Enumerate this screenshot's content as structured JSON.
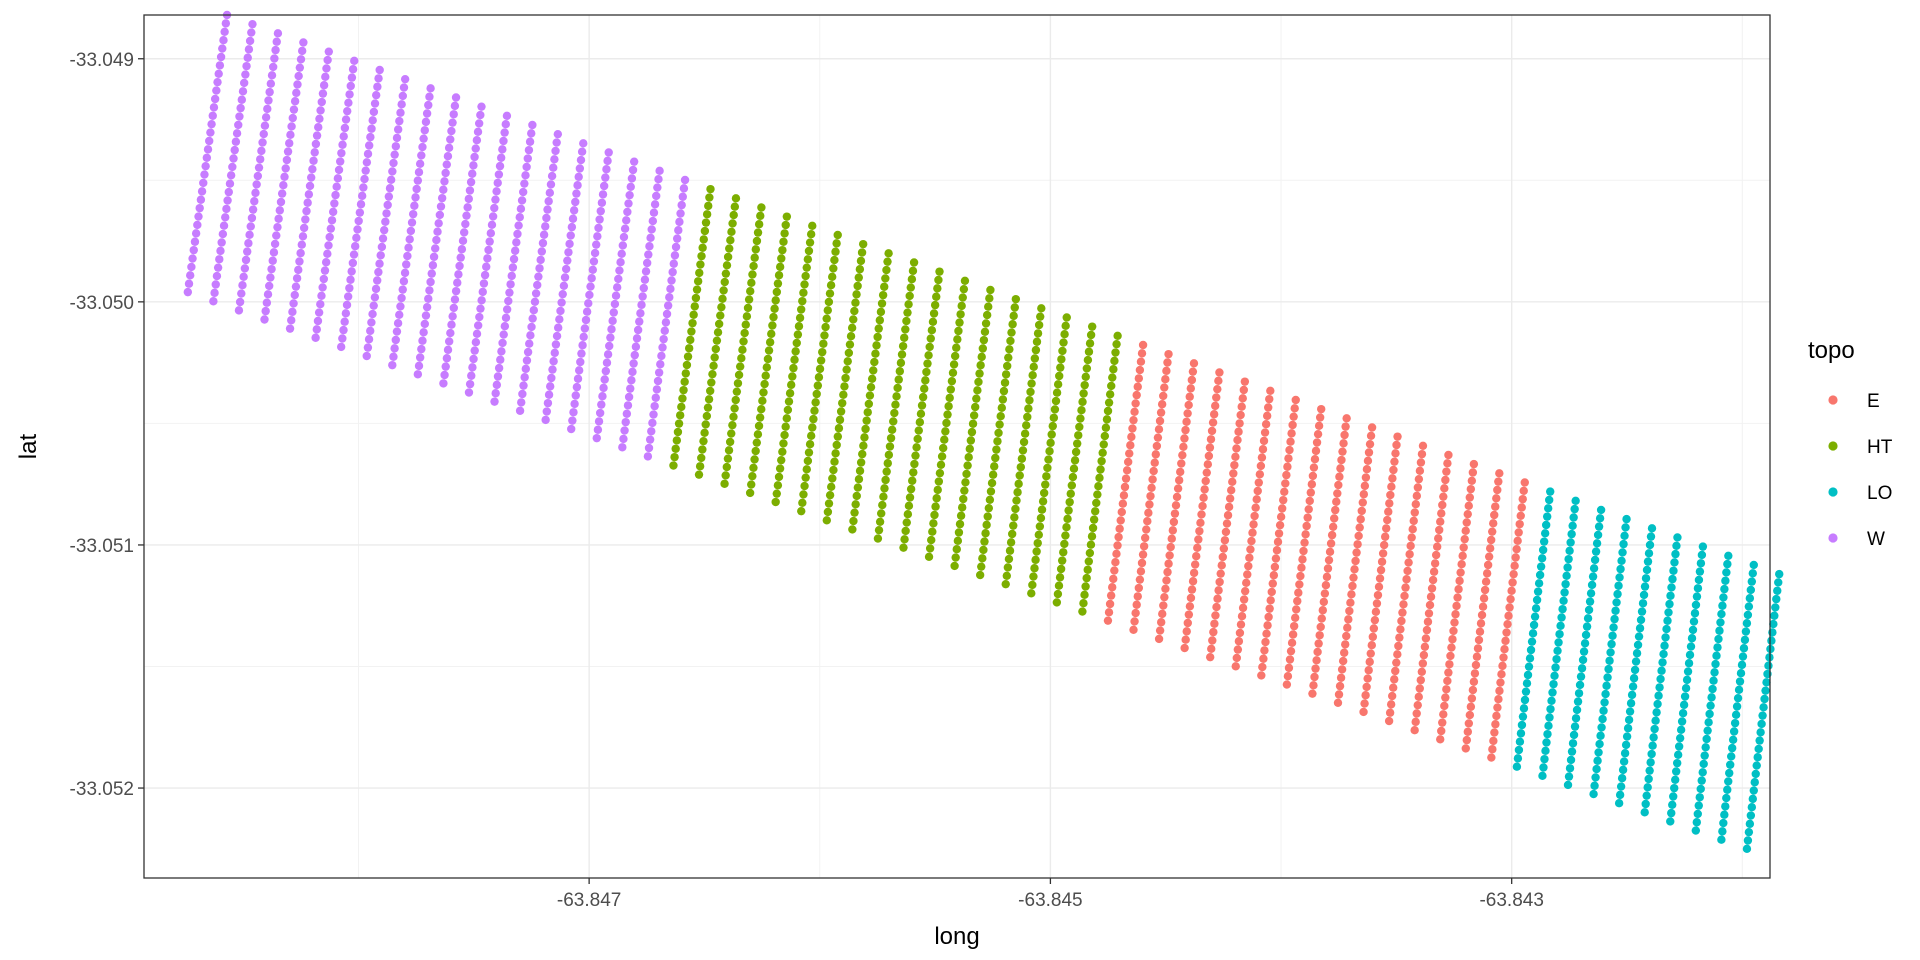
{
  "chart_data": {
    "type": "scatter",
    "title": "",
    "xlabel": "long",
    "ylabel": "lat",
    "xlim": [
      -63.84893,
      -63.84188
    ],
    "ylim": [
      -33.05237,
      -33.04882
    ],
    "x_ticks": [
      -63.847,
      -63.845,
      -63.843
    ],
    "x_tick_labels": [
      "-63.847",
      "-63.845",
      "-63.843"
    ],
    "y_ticks": [
      -33.049,
      -33.05,
      -33.051,
      -33.052
    ],
    "y_tick_labels": [
      "-33.049",
      "-33.050",
      "-33.051",
      "-33.052"
    ],
    "grid": true,
    "legend": {
      "title": "topo",
      "placement": "right"
    },
    "field_corners": {
      "top_left": [
        -63.84857,
        -33.04882
      ],
      "top_right": [
        -63.84184,
        -33.05112
      ],
      "bottom_right": [
        -63.84198,
        -33.05225
      ],
      "bottom_left": [
        -63.84874,
        -33.04996
      ]
    },
    "grid_rows": 34,
    "grid_cols": 62,
    "zones": [
      {
        "name": "W",
        "color": "#C77CFF",
        "col_start": 0,
        "col_end": 18,
        "boundary_top_long": -63.84668,
        "boundary_bottom_long": -63.84664
      },
      {
        "name": "HT",
        "color": "#7CAE00",
        "col_start": 19,
        "col_end": 35,
        "boundary_top_long": -63.84482,
        "boundary_bottom_long": -63.84495
      },
      {
        "name": "E",
        "color": "#F8766D",
        "col_start": 36,
        "col_end": 51,
        "boundary_top_long": -63.84322,
        "boundary_bottom_long": -63.84378
      },
      {
        "name": "LO",
        "color": "#00BFC4",
        "col_start": 52,
        "col_end": 61
      }
    ],
    "legend_entries": [
      {
        "label": "E",
        "color": "#F8766D"
      },
      {
        "label": "HT",
        "color": "#7CAE00"
      },
      {
        "label": "LO",
        "color": "#00BFC4"
      },
      {
        "label": "W",
        "color": "#C77CFF"
      }
    ]
  }
}
